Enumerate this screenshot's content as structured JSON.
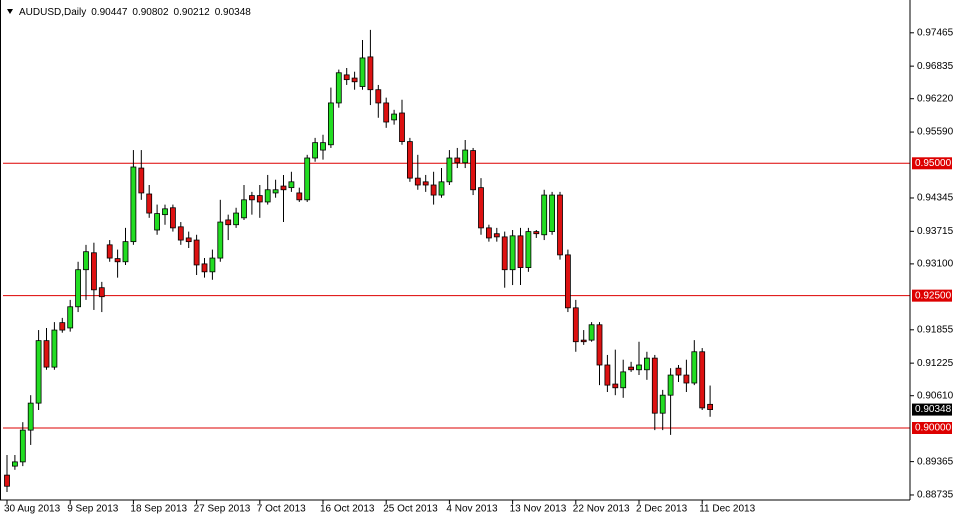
{
  "chart_data": {
    "type": "candlestick",
    "title": "AUDUSD,Daily",
    "categories": [
      "30 Aug 2013",
      null,
      null,
      null,
      null,
      null,
      null,
      null,
      "9 Sep 2013",
      null,
      null,
      null,
      null,
      null,
      null,
      null,
      "18 Sep 2013",
      null,
      null,
      null,
      null,
      null,
      null,
      null,
      "27 Sep 2013",
      null,
      null,
      null,
      null,
      null,
      null,
      null,
      "7 Oct 2013",
      null,
      null,
      null,
      null,
      null,
      null,
      null,
      "16 Oct 2013",
      null,
      null,
      null,
      null,
      null,
      null,
      null,
      "25 Oct 2013",
      null,
      null,
      null,
      null,
      null,
      null,
      null,
      "4 Nov 2013",
      null,
      null,
      null,
      null,
      null,
      null,
      null,
      "13 Nov 2013",
      null,
      null,
      null,
      null,
      null,
      null,
      null,
      "22 Nov 2013",
      null,
      null,
      null,
      null,
      null,
      null,
      null,
      "2 Dec 2013",
      null,
      null,
      null,
      null,
      null,
      null,
      null,
      "11 Dec 2013",
      null
    ],
    "open": [
      0.8911,
      0.8928,
      0.8936,
      0.8996,
      0.9047,
      0.9165,
      0.9115,
      0.9199,
      0.9189,
      0.9229,
      0.9299,
      0.9331,
      0.9265,
      0.9346,
      0.932,
      0.9314,
      0.9352,
      0.9491,
      0.9442,
      0.9374,
      0.9403,
      0.9416,
      0.938,
      0.9359,
      0.9355,
      0.931,
      0.9295,
      0.9321,
      0.9393,
      0.9384,
      0.9397,
      0.9439,
      0.9439,
      0.9427,
      0.9444,
      0.9457,
      0.9454,
      0.9444,
      0.9431,
      0.951,
      0.9525,
      0.9535,
      0.9614,
      0.9667,
      0.9661,
      0.9645,
      0.9701,
      0.9639,
      0.9614,
      0.9582,
      0.9595,
      0.9541,
      0.9472,
      0.9465,
      0.9459,
      0.944,
      0.9465,
      0.951,
      0.9501,
      0.9524,
      0.9454,
      0.9378,
      0.9367,
      0.9361,
      0.9299,
      0.9363,
      0.9303,
      0.9371,
      0.9365,
      0.9371,
      0.944,
      0.9327,
      0.9227,
      0.9166,
      0.9166,
      0.9195,
      0.9119,
      0.9083,
      0.9076,
      0.9115,
      0.911,
      0.911,
      0.9132,
      0.9028,
      0.9062,
      0.9113,
      0.91,
      0.9085,
      0.9144,
      0.90447
    ],
    "high": [
      0.8949,
      0.8949,
      0.9011,
      0.9062,
      0.9185,
      0.9189,
      0.92,
      0.9208,
      0.9242,
      0.9314,
      0.9346,
      0.935,
      0.9276,
      0.9355,
      0.9337,
      0.9378,
      0.9525,
      0.9525,
      0.9459,
      0.9422,
      0.9422,
      0.9422,
      0.9389,
      0.9371,
      0.9365,
      0.9321,
      0.9337,
      0.9431,
      0.9403,
      0.9416,
      0.9459,
      0.9446,
      0.9459,
      0.9478,
      0.9469,
      0.9478,
      0.9484,
      0.9454,
      0.9516,
      0.9548,
      0.9554,
      0.9643,
      0.9677,
      0.968,
      0.9673,
      0.9733,
      0.9752,
      0.9648,
      0.9624,
      0.9601,
      0.962,
      0.9548,
      0.9516,
      0.9478,
      0.9484,
      0.9491,
      0.9525,
      0.9529,
      0.9544,
      0.9529,
      0.9472,
      0.9384,
      0.9378,
      0.9371,
      0.9374,
      0.9378,
      0.9378,
      0.9374,
      0.945,
      0.9446,
      0.9446,
      0.9337,
      0.9242,
      0.9185,
      0.92,
      0.92,
      0.9138,
      0.9148,
      0.9129,
      0.9125,
      0.9163,
      0.9144,
      0.9138,
      0.9072,
      0.9113,
      0.9119,
      0.9129,
      0.9166,
      0.9151,
      0.90802
    ],
    "low": [
      0.8879,
      0.8921,
      0.8928,
      0.8968,
      0.9034,
      0.911,
      0.911,
      0.918,
      0.9182,
      0.9219,
      0.9242,
      0.9223,
      0.9219,
      0.9314,
      0.9284,
      0.9308,
      0.9346,
      0.9431,
      0.9397,
      0.9365,
      0.9384,
      0.9371,
      0.9346,
      0.934,
      0.9289,
      0.9284,
      0.928,
      0.9314,
      0.9355,
      0.9378,
      0.9393,
      0.9403,
      0.9397,
      0.9422,
      0.9435,
      0.9389,
      0.9446,
      0.9427,
      0.9427,
      0.9503,
      0.9507,
      0.9529,
      0.9605,
      0.9648,
      0.9639,
      0.9639,
      0.961,
      0.9586,
      0.9567,
      0.9573,
      0.9535,
      0.9465,
      0.945,
      0.9446,
      0.9422,
      0.9435,
      0.9459,
      0.9491,
      0.9491,
      0.944,
      0.9365,
      0.9352,
      0.9352,
      0.9265,
      0.927,
      0.927,
      0.9295,
      0.9359,
      0.9355,
      0.9365,
      0.9318,
      0.9219,
      0.9144,
      0.9157,
      0.9163,
      0.9081,
      0.9068,
      0.9062,
      0.9057,
      0.9106,
      0.91,
      0.9091,
      0.8996,
      0.8996,
      0.8987,
      0.9087,
      0.9068,
      0.9081,
      0.9034,
      0.90212
    ],
    "close": [
      0.889,
      0.8936,
      0.8996,
      0.9047,
      0.9165,
      0.9115,
      0.9185,
      0.9185,
      0.9229,
      0.9299,
      0.9333,
      0.9261,
      0.9248,
      0.9321,
      0.9314,
      0.9352,
      0.9493,
      0.9444,
      0.9406,
      0.9405,
      0.9414,
      0.9378,
      0.9355,
      0.9352,
      0.9308,
      0.9295,
      0.9321,
      0.9389,
      0.9384,
      0.9406,
      0.9431,
      0.9431,
      0.9427,
      0.945,
      0.945,
      0.945,
      0.9465,
      0.9431,
      0.951,
      0.9539,
      0.9539,
      0.9614,
      0.9671,
      0.9658,
      0.9654,
      0.9699,
      0.9639,
      0.9614,
      0.9578,
      0.9593,
      0.9541,
      0.9472,
      0.9459,
      0.9459,
      0.944,
      0.9465,
      0.951,
      0.9501,
      0.9525,
      0.945,
      0.9378,
      0.9359,
      0.9361,
      0.9299,
      0.9363,
      0.9303,
      0.9371,
      0.9367,
      0.944,
      0.944,
      0.9327,
      0.9227,
      0.9163,
      0.9163,
      0.9195,
      0.9119,
      0.9081,
      0.9076,
      0.9106,
      0.911,
      0.9119,
      0.9132,
      0.9028,
      0.9062,
      0.91,
      0.91,
      0.9085,
      0.9144,
      0.9038,
      0.90348
    ],
    "up_color": "#22dd22",
    "down_color": "#dd1111",
    "wick_color": "#000000",
    "ylim": [
      0.8864,
      0.9799
    ],
    "yticks": [
      0.97465,
      0.96835,
      {
        "value": 0.9622,
        "label": "0.96220"
      },
      {
        "value": 0.9559,
        "label": "0.95590"
      },
      0.94345,
      0.93715,
      {
        "value": 0.931,
        "label": "0.93100"
      },
      0.91855,
      0.91225,
      {
        "value": 0.9061,
        "label": "0.90610"
      },
      0.89365,
      0.88735
    ],
    "hlines": [
      {
        "value": 0.95,
        "label": "0.95000"
      },
      {
        "value": 0.925,
        "label": "0.92500"
      },
      {
        "value": 0.9,
        "label": "0.90000"
      }
    ],
    "hline_color": "#dd0000"
  }
}
